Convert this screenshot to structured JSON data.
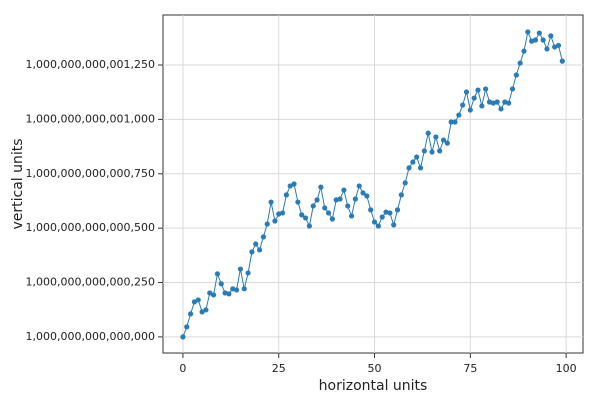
{
  "chart_data": {
    "type": "line",
    "x_label": "horizontal units",
    "y_label": "vertical units",
    "x": [
      0,
      1,
      2,
      3,
      4,
      5,
      6,
      7,
      8,
      9,
      10,
      11,
      12,
      13,
      14,
      15,
      16,
      17,
      18,
      19,
      20,
      21,
      22,
      23,
      24,
      25,
      26,
      27,
      28,
      29,
      30,
      31,
      32,
      33,
      34,
      35,
      36,
      37,
      38,
      39,
      40,
      41,
      42,
      43,
      44,
      45,
      46,
      47,
      48,
      49,
      50,
      51,
      52,
      53,
      54,
      55,
      56,
      57,
      58,
      59,
      60,
      61,
      62,
      63,
      64,
      65,
      66,
      67,
      68,
      69,
      70,
      71,
      72,
      73,
      74,
      75,
      76,
      77,
      78,
      79,
      80,
      81,
      82,
      83,
      84,
      85,
      86,
      87,
      88,
      89,
      90,
      91,
      92,
      93,
      94,
      95,
      96,
      97,
      98,
      99
    ],
    "series": [
      {
        "color": "#2b7bb5",
        "values": [
          1000000000000000,
          1000000000000046,
          1000000000000106,
          1000000000000161,
          1000000000000170,
          1000000000000115,
          1000000000000124,
          1000000000000202,
          1000000000000193,
          1000000000000290,
          1000000000000244,
          1000000000000202,
          1000000000000198,
          1000000000000221,
          1000000000000216,
          1000000000000312,
          1000000000000221,
          1000000000000294,
          1000000000000391,
          1000000000000427,
          1000000000000400,
          1000000000000460,
          1000000000000519,
          1000000000000620,
          1000000000000533,
          1000000000000565,
          1000000000000570,
          1000000000000653,
          1000000000000694,
          1000000000000703,
          1000000000000620,
          1000000000000561,
          1000000000000547,
          1000000000000510,
          1000000000000602,
          1000000000000630,
          1000000000000689,
          1000000000000593,
          1000000000000570,
          1000000000000542,
          1000000000000630,
          1000000000000634,
          1000000000000675,
          1000000000000602,
          1000000000000556,
          1000000000000634,
          1000000000000694,
          1000000000000662,
          1000000000000648,
          1000000000000584,
          1000000000000528,
          1000000000000510,
          1000000000000551,
          1000000000000574,
          1000000000000570,
          1000000000000515,
          1000000000000584,
          1000000000000653,
          1000000000000708,
          1000000000000777,
          1000000000000804,
          1000000000000827,
          1000000000000777,
          1000000000000855,
          1000000000000937,
          1000000000000850,
          1000000000000919,
          1000000000000855,
          1000000000000905,
          1000000000000891,
          1000000000000988,
          1000000000000988,
          1000000000001020,
          1000000000001066,
          1000000000001126,
          1000000000001043,
          1000000000001098,
          1000000000001135,
          1000000000001062,
          1000000000001140,
          1000000000001080,
          1000000000001075,
          1000000000001080,
          1000000000001048,
          1000000000001080,
          1000000000001075,
          1000000000001140,
          1000000000001204,
          1000000000001259,
          1000000000001314,
          1000000000001402,
          1000000000001360,
          1000000000001365,
          1000000000001397,
          1000000000001365,
          1000000000001324,
          1000000000001384,
          1000000000001333,
          1000000000001340,
          1000000000001268
        ]
      }
    ],
    "xlim": [
      -5.2,
      104.4
    ],
    "xticks": [
      0,
      25,
      50,
      75,
      100
    ],
    "ylim": [
      999999999999926,
      1000000000001480
    ],
    "yticks": [
      {
        "value": 1000000000000000,
        "label": "1,000,000,000,000,000"
      },
      {
        "value": 1000000000000250,
        "label": "1,000,000,000,000,250"
      },
      {
        "value": 1000000000000500,
        "label": "1,000,000,000,000,500"
      },
      {
        "value": 1000000000000750,
        "label": "1,000,000,000,000,750"
      },
      {
        "value": 1000000000001000,
        "label": "1,000,000,000,001,000"
      },
      {
        "value": 1000000000001250,
        "label": "1,000,000,000,001,250"
      }
    ],
    "grid": true
  }
}
